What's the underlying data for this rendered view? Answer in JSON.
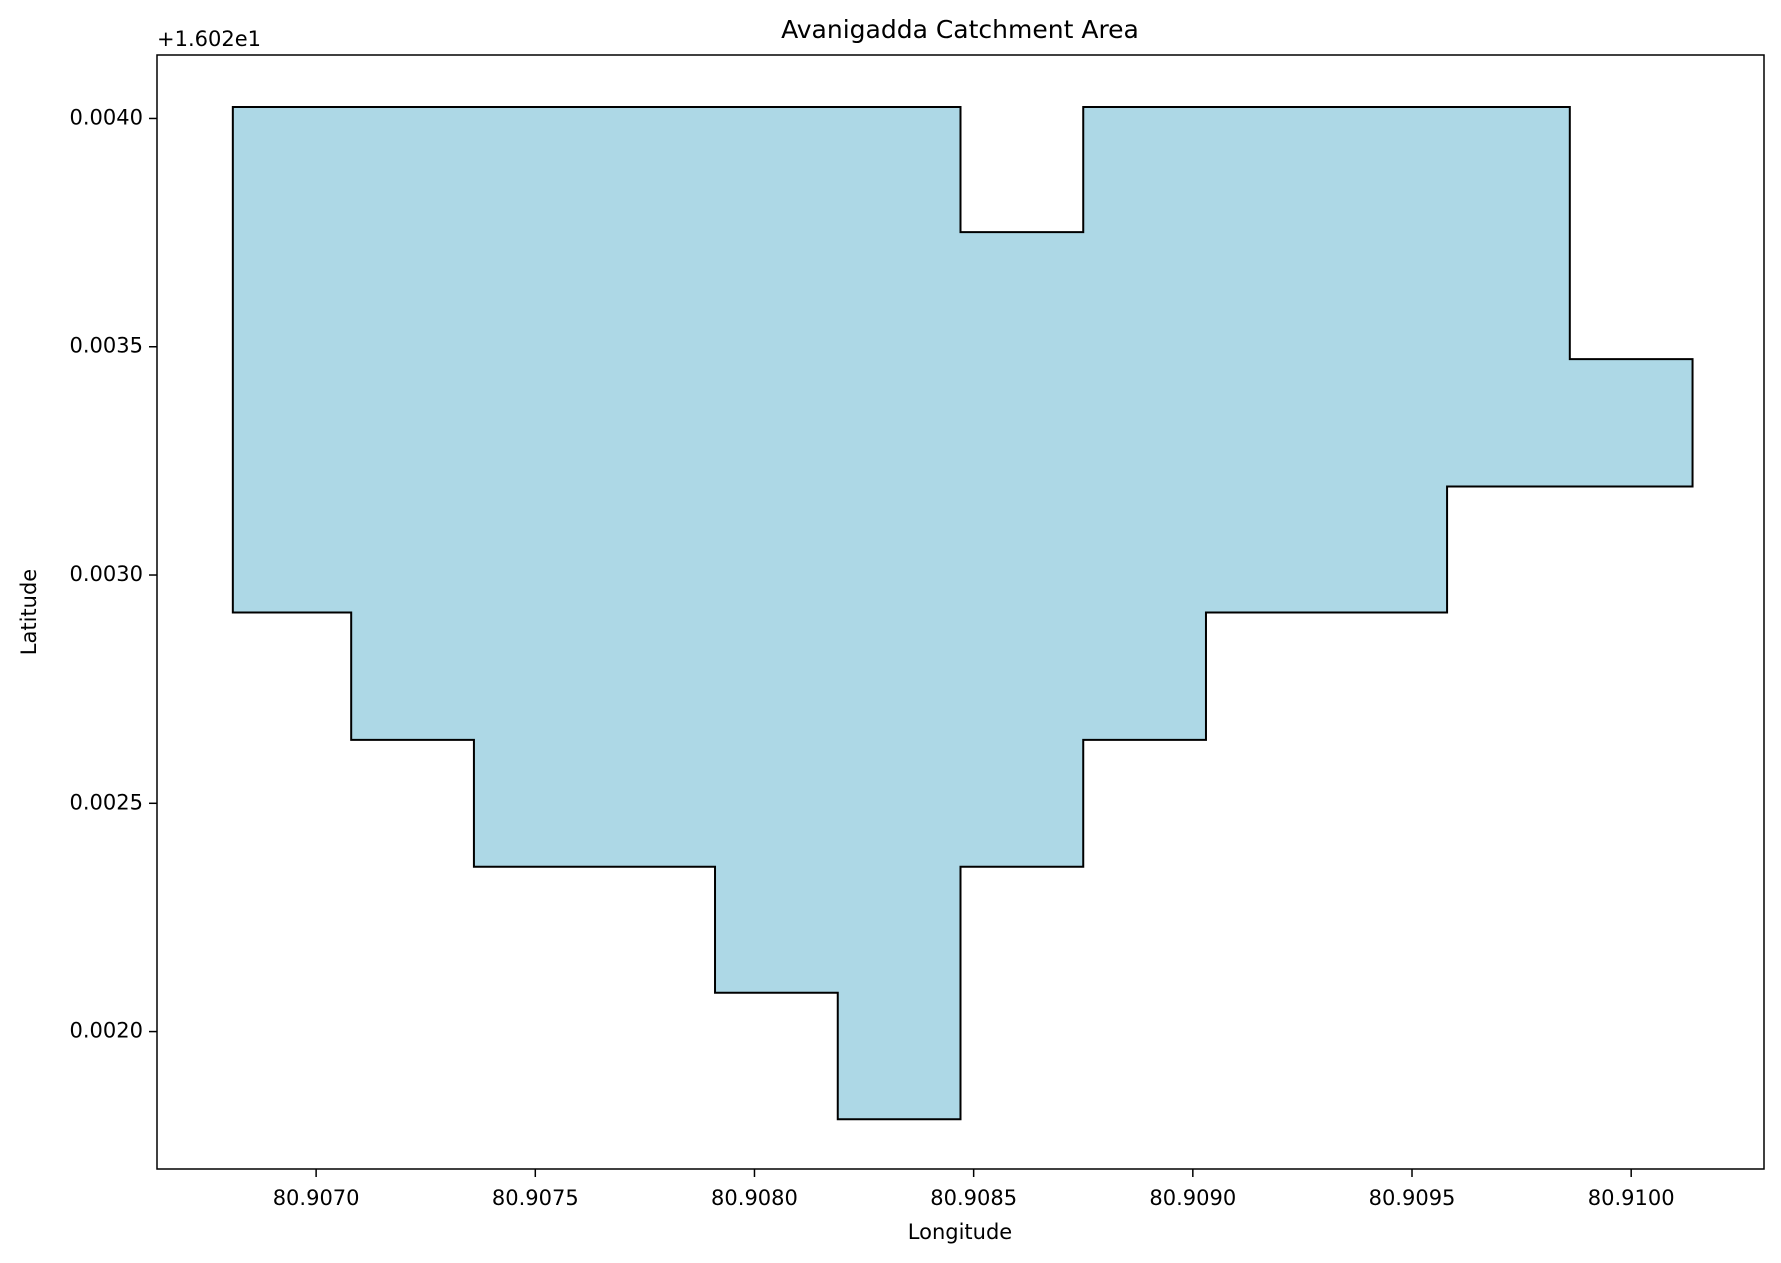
{
  "chart_data": {
    "type": "polygon",
    "title": "Avanigadda Catchment Area",
    "x_label": "Longitude",
    "y_label": "Latitude",
    "y_offset_text": "+1.602e1",
    "color": "#add8e6",
    "edge_color": "#000000",
    "grid": false,
    "x": [
      80.90681,
      80.90847,
      80.90847,
      80.90875,
      80.90875,
      80.90986,
      80.90986,
      80.91014,
      80.91014,
      80.90958,
      80.90958,
      80.90903,
      80.90903,
      80.90875,
      80.90875,
      80.90847,
      80.90847,
      80.90819,
      80.90819,
      80.90791,
      80.90791,
      80.90736,
      80.90736,
      80.90708,
      80.90708,
      80.90681
    ],
    "y": [
      0.004025,
      0.004025,
      0.003751,
      0.003751,
      0.004025,
      0.004025,
      0.003473,
      0.003473,
      0.003194,
      0.003194,
      0.002918,
      0.002918,
      0.002639,
      0.002639,
      0.002361,
      0.002361,
      0.001808,
      0.001808,
      0.002085,
      0.002085,
      0.002361,
      0.002361,
      0.002639,
      0.002639,
      0.002918,
      0.002918
    ],
    "xlim": [
      80.906637,
      80.910303
    ],
    "ylim": [
      0.001699,
      0.004139
    ],
    "xticks": [
      {
        "value": 80.907,
        "label": "80.9070"
      },
      {
        "value": 80.9075,
        "label": "80.9075"
      },
      {
        "value": 80.908,
        "label": "80.9080"
      },
      {
        "value": 80.9085,
        "label": "80.9085"
      },
      {
        "value": 80.909,
        "label": "80.9090"
      },
      {
        "value": 80.9095,
        "label": "80.9095"
      },
      {
        "value": 80.91,
        "label": "80.9100"
      }
    ],
    "yticks": [
      {
        "value": 0.002,
        "label": "0.0020"
      },
      {
        "value": 0.0025,
        "label": "0.0025"
      },
      {
        "value": 0.003,
        "label": "0.0030"
      },
      {
        "value": 0.0035,
        "label": "0.0035"
      },
      {
        "value": 0.004,
        "label": "0.0040"
      }
    ]
  }
}
